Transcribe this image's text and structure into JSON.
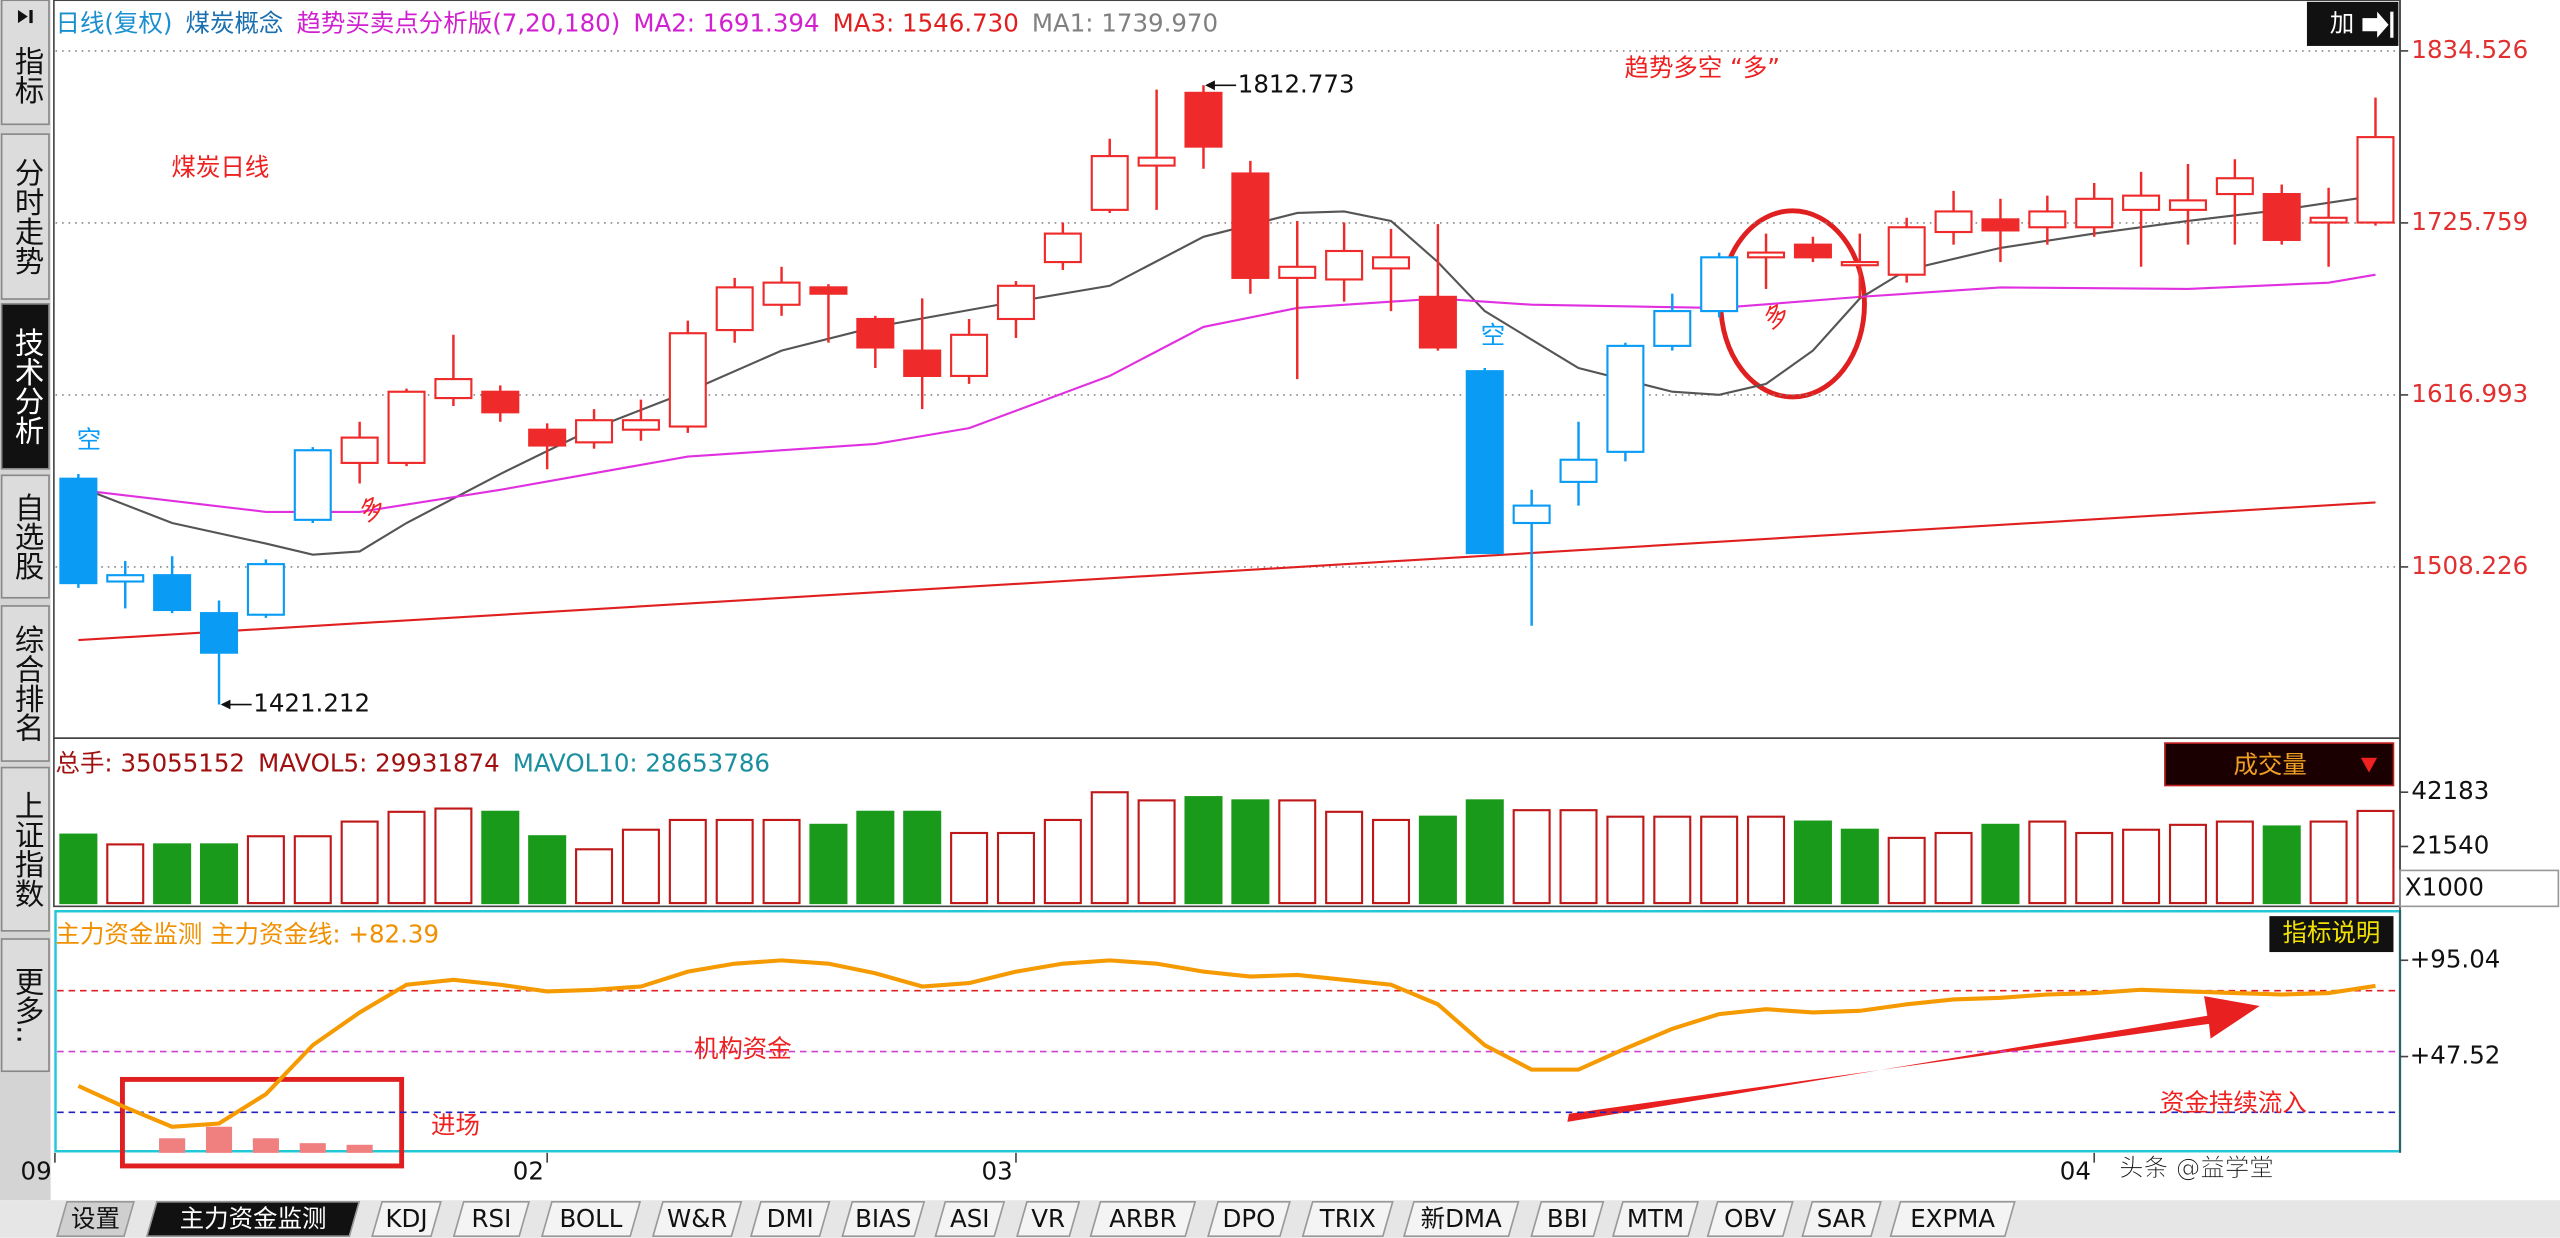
{
  "sidebar": [
    "指标",
    "分时走势",
    "技术分析",
    "自选股",
    "综合排名",
    "上证指数",
    "更多.."
  ],
  "sidebar_active": 2,
  "header": [
    {
      "text": "日线(复权)",
      "color": "#1a8fd0"
    },
    {
      "text": "煤炭概念",
      "color": "#1a6fb0"
    },
    {
      "text": "趋势买卖点分析版(7,20,180)",
      "color": "#d020d0"
    },
    {
      "text": "MA2: 1691.394",
      "color": "#d020d0"
    },
    {
      "text": "MA3: 1546.730",
      "color": "#e02020"
    },
    {
      "text": "MA1: 1739.970",
      "color": "#808080"
    }
  ],
  "button_add": "加",
  "chart_data": [
    {
      "type": "candlestick",
      "ylim": [
        1402,
        1864.5
      ],
      "yticks": [
        1508.226,
        1616.993,
        1725.759,
        1834.526
      ],
      "grid": true,
      "open": [
        1564,
        1499,
        1503,
        1479,
        1478,
        1538,
        1574,
        1574,
        1615,
        1619,
        1595,
        1587,
        1595,
        1597,
        1658,
        1674,
        1685,
        1665,
        1645,
        1629,
        1665,
        1701,
        1734,
        1762,
        1808,
        1757,
        1691,
        1690,
        1697,
        1679,
        1632,
        1536,
        1562,
        1581,
        1648,
        1670,
        1704,
        1712,
        1699,
        1693,
        1720,
        1728,
        1723,
        1723,
        1734,
        1734,
        1744,
        1744,
        1726,
        1726
      ],
      "high": [
        1567,
        1512,
        1515,
        1487,
        1513,
        1584,
        1600,
        1621,
        1655,
        1623,
        1599,
        1608,
        1614,
        1664,
        1691,
        1698,
        1687,
        1667,
        1678,
        1665,
        1689,
        1726,
        1779,
        1810,
        1812.773,
        1765,
        1727,
        1726,
        1722,
        1725,
        1634,
        1557,
        1600,
        1650,
        1681,
        1707,
        1719,
        1717,
        1719,
        1729,
        1746,
        1741,
        1743,
        1751,
        1758,
        1763,
        1766,
        1750,
        1748,
        1805
      ],
      "low": [
        1495,
        1482,
        1479,
        1421.212,
        1476,
        1536,
        1561,
        1572,
        1610,
        1600,
        1570,
        1583,
        1588,
        1593,
        1650,
        1667,
        1650,
        1634,
        1608,
        1624,
        1653,
        1696,
        1732,
        1734,
        1760,
        1681,
        1627,
        1676,
        1670,
        1645,
        1517,
        1471,
        1547,
        1575,
        1645,
        1666,
        1684,
        1701,
        1678,
        1688,
        1712,
        1701,
        1712,
        1717,
        1698,
        1712,
        1712,
        1712,
        1698,
        1724
      ],
      "close": [
        1498,
        1503,
        1481,
        1454,
        1510,
        1582,
        1590,
        1619,
        1627,
        1606,
        1585,
        1601,
        1601,
        1656,
        1685,
        1688,
        1681,
        1647,
        1629,
        1655,
        1686,
        1719,
        1768,
        1767,
        1774,
        1691,
        1698,
        1708,
        1704,
        1647,
        1517,
        1547,
        1576,
        1648,
        1670,
        1704,
        1707,
        1704,
        1701,
        1723,
        1733,
        1721,
        1733,
        1741,
        1743,
        1740,
        1754,
        1715,
        1729,
        1780
      ],
      "colors": [
        "#0a9cf5",
        "#0a9cf5",
        "#0a9cf5",
        "#0a9cf5",
        "#0a9cf5",
        "#0a9cf5",
        "#ee2a2a",
        "#ee2a2a",
        "#ee2a2a",
        "#ee2a2a",
        "#ee2a2a",
        "#ee2a2a",
        "#ee2a2a",
        "#ee2a2a",
        "#ee2a2a",
        "#ee2a2a",
        "#ee2a2a",
        "#ee2a2a",
        "#ee2a2a",
        "#ee2a2a",
        "#ee2a2a",
        "#ee2a2a",
        "#ee2a2a",
        "#ee2a2a",
        "#ee2a2a",
        "#ee2a2a",
        "#ee2a2a",
        "#ee2a2a",
        "#ee2a2a",
        "#ee2a2a",
        "#0a9cf5",
        "#0a9cf5",
        "#0a9cf5",
        "#0a9cf5",
        "#0a9cf5",
        "#0a9cf5",
        "#ee2a2a",
        "#ee2a2a",
        "#ee2a2a",
        "#ee2a2a",
        "#ee2a2a",
        "#ee2a2a",
        "#ee2a2a",
        "#ee2a2a",
        "#ee2a2a",
        "#ee2a2a",
        "#ee2a2a",
        "#ee2a2a",
        "#ee2a2a",
        "#ee2a2a"
      ],
      "series": [
        {
          "name": "MA1",
          "color": "#555555",
          "x": [
            0,
            2,
            4,
            5,
            6,
            7,
            9,
            11,
            13,
            15,
            17,
            20,
            22,
            24,
            26,
            27,
            28,
            29,
            30,
            32,
            34,
            35,
            36,
            37,
            38,
            39,
            41,
            43,
            45,
            47,
            49
          ],
          "values": [
            1559,
            1536,
            1523,
            1516,
            1518,
            1536,
            1567,
            1596,
            1619,
            1645,
            1660,
            1676,
            1686,
            1717,
            1732,
            1733,
            1727,
            1701,
            1670,
            1634,
            1619,
            1617,
            1624,
            1645,
            1678,
            1696,
            1710,
            1719,
            1727,
            1734,
            1743
          ]
        },
        {
          "name": "MA2",
          "color": "#e030e0",
          "x": [
            0,
            4,
            6,
            9,
            13,
            17,
            19,
            22,
            24,
            26,
            29,
            31,
            35,
            38,
            41,
            45,
            48,
            49
          ],
          "values": [
            1557,
            1543,
            1543,
            1557,
            1578,
            1586,
            1596,
            1629,
            1660,
            1672,
            1678,
            1674,
            1672,
            1679,
            1685,
            1684,
            1688,
            1693
          ]
        },
        {
          "name": "MA3",
          "color": "#e02020",
          "x": [
            0,
            49
          ],
          "values": [
            1462,
            1549
          ]
        }
      ],
      "high_label": {
        "index": 24,
        "text": "1812.773"
      },
      "low_label": {
        "index": 3,
        "text": "1421.212"
      },
      "annotations": [
        "煤炭日线",
        "趋势多空 “多”",
        "空",
        "多",
        "空",
        "多"
      ]
    },
    {
      "type": "bar",
      "header": [
        {
          "text": "总手: 35055152",
          "color": "#a01010"
        },
        {
          "text": "MAVOL5: 29931874",
          "color": "#a01010"
        },
        {
          "text": "MAVOL10: 28653786",
          "color": "#1a8f9f"
        }
      ],
      "button": "成交量",
      "ylim": [
        0,
        59000
      ],
      "yticks": [
        21540,
        42183
      ],
      "unit_label": "X1000",
      "values": [
        26040,
        22320,
        22320,
        22320,
        25420,
        25420,
        31000,
        34720,
        35960,
        34720,
        25420,
        20460,
        27900,
        31620,
        31620,
        31620,
        29760,
        34720,
        34720,
        26660,
        26660,
        31620,
        42160,
        39060,
        40300,
        39060,
        39060,
        34720,
        31620,
        32860,
        39060,
        35340,
        35340,
        32860,
        32860,
        32860,
        32860,
        31000,
        27900,
        24800,
        26660,
        29760,
        31000,
        26660,
        27900,
        29760,
        31000,
        29140,
        31000,
        35055
      ],
      "colors": [
        "#1a9a1a",
        "#c01818",
        "#1a9a1a",
        "#1a9a1a",
        "#c01818",
        "#c01818",
        "#c01818",
        "#c01818",
        "#c01818",
        "#1a9a1a",
        "#1a9a1a",
        "#c01818",
        "#c01818",
        "#c01818",
        "#c01818",
        "#c01818",
        "#1a9a1a",
        "#1a9a1a",
        "#1a9a1a",
        "#c01818",
        "#c01818",
        "#c01818",
        "#c01818",
        "#c01818",
        "#1a9a1a",
        "#1a9a1a",
        "#c01818",
        "#c01818",
        "#c01818",
        "#1a9a1a",
        "#1a9a1a",
        "#c01818",
        "#c01818",
        "#c01818",
        "#c01818",
        "#c01818",
        "#c01818",
        "#1a9a1a",
        "#1a9a1a",
        "#c01818",
        "#c01818",
        "#1a9a1a",
        "#c01818",
        "#c01818",
        "#c01818",
        "#c01818",
        "#c01818",
        "#1a9a1a",
        "#c01818",
        "#c01818"
      ]
    },
    {
      "type": "line",
      "title": "主力资金监测 主力资金线: +82.39",
      "button": "指标说明",
      "ylim": [
        0,
        116
      ],
      "yticks": [
        {
          "value": 47.52,
          "label": "+47.52"
        },
        {
          "value": 95.04,
          "label": "+95.04"
        }
      ],
      "reference_lines": [
        {
          "value": 80,
          "color": "#e02020"
        },
        {
          "value": 50,
          "color": "#d040d0"
        },
        {
          "value": 20,
          "color": "#2020c0"
        }
      ],
      "series": [
        {
          "color": "#f59a00",
          "values": [
            33.0,
            22.5,
            12.9,
            14.5,
            29.0,
            53.2,
            69.3,
            83.0,
            85.4,
            83.0,
            79.7,
            80.5,
            82.1,
            89.4,
            93.4,
            95.0,
            93.4,
            88.6,
            82.1,
            83.8,
            89.4,
            93.4,
            95.0,
            93.4,
            89.4,
            87.0,
            87.8,
            85.4,
            83.0,
            73.3,
            53.2,
            41.1,
            41.1,
            51.5,
            61.2,
            68.5,
            70.9,
            69.3,
            70.1,
            73.3,
            75.7,
            76.5,
            78.1,
            78.9,
            80.5,
            79.7,
            78.9,
            78.1,
            78.9,
            82.39
          ]
        }
      ],
      "bars": {
        "x": [
          2,
          3,
          4,
          5,
          6
        ],
        "values": [
          7.2,
          12.9,
          7.2,
          4.8,
          4.0
        ],
        "color": "#f08080"
      },
      "xticks": [
        {
          "value": -0.5,
          "label": "09"
        },
        {
          "value": 10,
          "label": "02"
        },
        {
          "value": 20,
          "label": "03"
        },
        {
          "value": 43,
          "label": "04"
        }
      ],
      "annotations": [
        "机构资金",
        "进场",
        "资金持续流入"
      ]
    }
  ],
  "tabs": [
    "设置",
    "主力资金监测",
    "KDJ",
    "RSI",
    "BOLL",
    "W&R",
    "DMI",
    "BIAS",
    "ASI",
    "VR",
    "ARBR",
    "DPO",
    "TRIX",
    "新DMA",
    "BBI",
    "MTM",
    "OBV",
    "SAR",
    "EXPMA"
  ],
  "active_tab": 1,
  "watermark": "头条 @益学堂"
}
